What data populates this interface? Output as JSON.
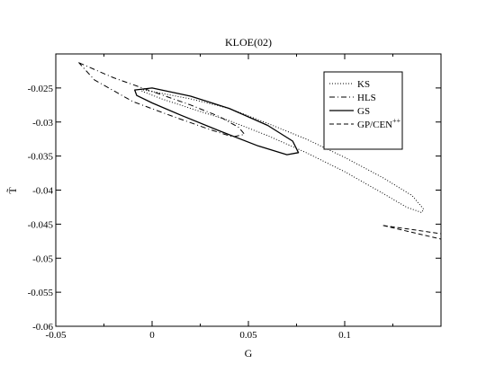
{
  "chart_data": {
    "type": "line",
    "title": "KLOE(02)",
    "xlabel": "G",
    "ylabel": "T̃",
    "xlim": [
      -0.05,
      0.15
    ],
    "ylim": [
      -0.06,
      -0.02
    ],
    "grid": false,
    "legend_position": "top-right",
    "x_ticks": [
      {
        "value": -0.05,
        "label": "-0.05"
      },
      {
        "value": 0,
        "label": "0"
      },
      {
        "value": 0.05,
        "label": "0.05"
      },
      {
        "value": 0.1,
        "label": "0.1"
      }
    ],
    "y_ticks": [
      {
        "value": -0.025,
        "label": "-0.025"
      },
      {
        "value": -0.03,
        "label": "-0.03"
      },
      {
        "value": -0.035,
        "label": "-0.035"
      },
      {
        "value": -0.04,
        "label": "-0.04"
      },
      {
        "value": -0.045,
        "label": "-0.045"
      },
      {
        "value": -0.05,
        "label": "-0.05"
      },
      {
        "value": -0.055,
        "label": "-0.055"
      },
      {
        "value": -0.06,
        "label": "-0.06"
      }
    ],
    "series": [
      {
        "name": "KS",
        "style": "dotted",
        "closed": true,
        "x": [
          -0.006,
          0.005,
          0.02,
          0.04,
          0.06,
          0.08,
          0.1,
          0.12,
          0.135,
          0.141,
          0.14,
          0.132,
          0.12,
          0.1,
          0.08,
          0.06,
          0.04,
          0.02,
          0.005,
          -0.005,
          -0.006
        ],
        "y": [
          -0.0252,
          -0.0258,
          -0.0266,
          -0.028,
          -0.0302,
          -0.0325,
          -0.0352,
          -0.0382,
          -0.0408,
          -0.0428,
          -0.0433,
          -0.0425,
          -0.0405,
          -0.0373,
          -0.0345,
          -0.032,
          -0.0298,
          -0.028,
          -0.0266,
          -0.0255,
          -0.0252
        ]
      },
      {
        "name": "HLS",
        "style": "dash-dot",
        "closed": true,
        "x": [
          -0.038,
          -0.02,
          0.0,
          0.02,
          0.035,
          0.045,
          0.048,
          0.042,
          0.03,
          0.01,
          -0.01,
          -0.03,
          -0.038
        ],
        "y": [
          -0.0213,
          -0.0235,
          -0.0255,
          -0.0275,
          -0.0292,
          -0.0308,
          -0.0318,
          -0.0322,
          -0.0311,
          -0.0291,
          -0.027,
          -0.0238,
          -0.0213
        ]
      },
      {
        "name": "GS",
        "style": "solid",
        "closed": true,
        "x": [
          -0.009,
          0.0,
          0.02,
          0.04,
          0.06,
          0.073,
          0.076,
          0.07,
          0.055,
          0.035,
          0.015,
          0.0,
          -0.008,
          -0.009
        ],
        "y": [
          -0.0253,
          -0.025,
          -0.0262,
          -0.028,
          -0.0305,
          -0.0328,
          -0.0345,
          -0.0348,
          -0.0335,
          -0.0313,
          -0.029,
          -0.0272,
          -0.0261,
          -0.0253
        ]
      },
      {
        "name": "GP/CEN++",
        "style": "dashed",
        "closed": false,
        "segments": [
          {
            "x": [
              0.12,
              0.135,
              0.15
            ],
            "y": [
              -0.0452,
              -0.0458,
              -0.0464
            ]
          },
          {
            "x": [
              0.12,
              0.135,
              0.15
            ],
            "y": [
              -0.0452,
              -0.0462,
              -0.0472
            ]
          }
        ]
      }
    ]
  }
}
